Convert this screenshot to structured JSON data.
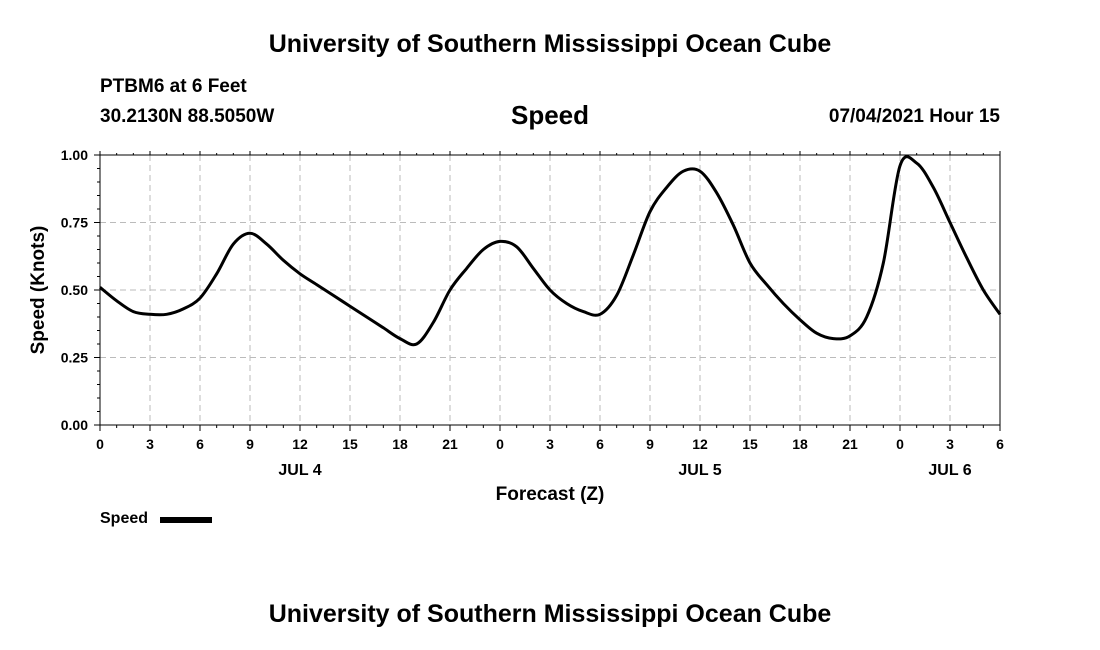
{
  "header": {
    "top_title": "University of Southern Mississippi Ocean Cube",
    "bottom_title": "University of Southern Mississippi Ocean Cube",
    "station": "PTBM6 at 6 Feet",
    "coords": "30.2130N  88.5050W",
    "datetime": "07/04/2021 Hour 15"
  },
  "legend": {
    "label": "Speed",
    "color": "#000000"
  },
  "chart_data": {
    "type": "line",
    "title": "Speed",
    "xlabel": "Forecast (Z)",
    "ylabel": "Speed (Knots)",
    "xlim": [
      0,
      54
    ],
    "ylim": [
      0,
      1.0
    ],
    "yticks": [
      0,
      0.25,
      0.5,
      0.75,
      1.0
    ],
    "ytick_labels": [
      "0.00",
      "0.25",
      "0.50",
      "0.75",
      "1.00"
    ],
    "xticks": [
      0,
      3,
      6,
      9,
      12,
      15,
      18,
      21,
      24,
      27,
      30,
      33,
      36,
      39,
      42,
      45,
      48,
      51,
      54
    ],
    "xtick_labels": [
      "0",
      "3",
      "6",
      "9",
      "12",
      "15",
      "18",
      "21",
      "0",
      "3",
      "6",
      "9",
      "12",
      "15",
      "18",
      "21",
      "0",
      "3",
      "6"
    ],
    "day_labels": [
      {
        "x": 12,
        "label": "JUL 4"
      },
      {
        "x": 36,
        "label": "JUL 5"
      },
      {
        "x": 51,
        "label": "JUL 6"
      }
    ],
    "grid": true,
    "series": [
      {
        "name": "Speed",
        "color": "#000000",
        "x": [
          0,
          1,
          2,
          3,
          4,
          5,
          6,
          7,
          8,
          9,
          10,
          11,
          12,
          13,
          14,
          15,
          16,
          17,
          18,
          19,
          20,
          21,
          22,
          23,
          24,
          25,
          26,
          27,
          28,
          29,
          30,
          31,
          32,
          33,
          34,
          35,
          36,
          37,
          38,
          39,
          40,
          41,
          42,
          43,
          44,
          45,
          46,
          47,
          48,
          49,
          50,
          51,
          52,
          53,
          54
        ],
        "y": [
          0.51,
          0.46,
          0.42,
          0.41,
          0.41,
          0.43,
          0.47,
          0.56,
          0.67,
          0.71,
          0.67,
          0.61,
          0.56,
          0.52,
          0.48,
          0.44,
          0.4,
          0.36,
          0.32,
          0.3,
          0.38,
          0.5,
          0.58,
          0.65,
          0.68,
          0.66,
          0.58,
          0.5,
          0.45,
          0.42,
          0.41,
          0.48,
          0.63,
          0.79,
          0.88,
          0.94,
          0.94,
          0.86,
          0.74,
          0.6,
          0.52,
          0.45,
          0.39,
          0.34,
          0.32,
          0.33,
          0.4,
          0.6,
          0.96,
          0.97,
          0.88,
          0.75,
          0.62,
          0.5,
          0.41
        ]
      }
    ]
  }
}
